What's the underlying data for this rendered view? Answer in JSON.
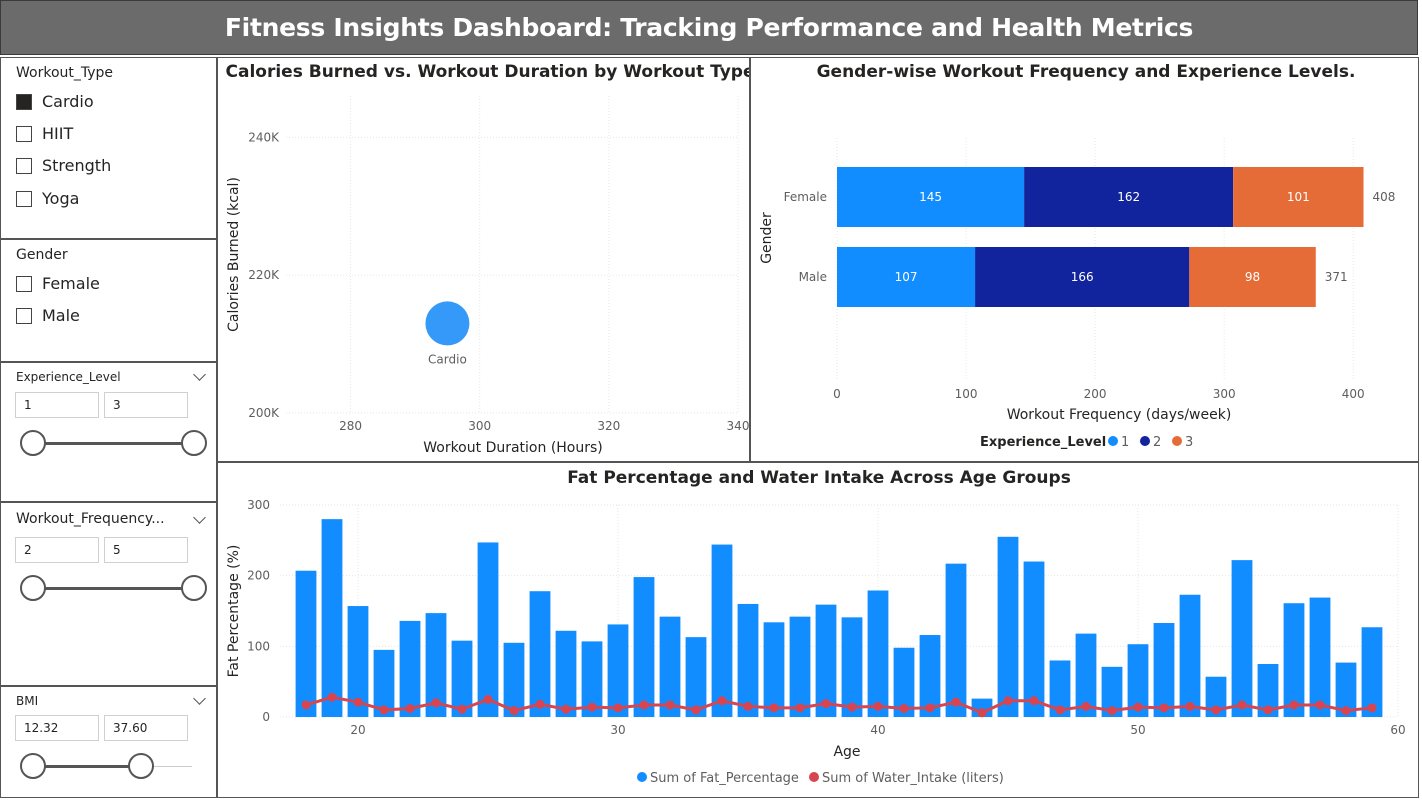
{
  "header": {
    "title": "Fitness Insights Dashboard: Tracking Performance and Health Metrics"
  },
  "slicers": {
    "workout_type": {
      "title": "Workout_Type",
      "options": [
        {
          "label": "Cardio",
          "checked": true
        },
        {
          "label": "HIIT",
          "checked": false
        },
        {
          "label": "Strength",
          "checked": false
        },
        {
          "label": "Yoga",
          "checked": false
        }
      ]
    },
    "gender": {
      "title": "Gender",
      "options": [
        {
          "label": "Female",
          "checked": false
        },
        {
          "label": "Male",
          "checked": false
        }
      ]
    },
    "experience_level": {
      "title": "Experience_Level",
      "min": "1",
      "max": "3"
    },
    "workout_frequency": {
      "title": "Workout_Frequency...",
      "min": "2",
      "max": "5"
    },
    "bmi": {
      "title": "BMI",
      "min": "12.32",
      "max": "37.60"
    }
  },
  "chart_data": [
    {
      "type": "scatter",
      "title": "Calories Burned vs. Workout Duration by Workout Type",
      "xlabel": "Workout Duration (Hours)",
      "ylabel": "Calories Burned (kcal)",
      "xlim": [
        270,
        340
      ],
      "ylim": [
        200000,
        246000
      ],
      "xticks": [
        {
          "v": 280,
          "label": "280"
        },
        {
          "v": 300,
          "label": "300"
        },
        {
          "v": 320,
          "label": "320"
        },
        {
          "v": 340,
          "label": "340"
        }
      ],
      "yticks": [
        {
          "v": 200000,
          "label": "200K"
        },
        {
          "v": 220000,
          "label": "220K"
        },
        {
          "v": 240000,
          "label": "240K"
        }
      ],
      "points": [
        {
          "label": "Cardio",
          "x": 295,
          "y": 213000
        }
      ],
      "color": "#3599F9"
    },
    {
      "type": "bar",
      "orientation": "horizontal",
      "stacked": true,
      "title": "Gender-wise Workout Frequency and Experience Levels.",
      "xlabel": "Workout Frequency (days/week)",
      "ylabel": "Gender",
      "xlim": [
        0,
        420
      ],
      "xticks": [
        0,
        100,
        200,
        300,
        400
      ],
      "categories": [
        "Female",
        "Male"
      ],
      "series": [
        {
          "name": "1",
          "values": [
            145,
            107
          ],
          "color": "#118DFF"
        },
        {
          "name": "2",
          "values": [
            162,
            166
          ],
          "color": "#12239E"
        },
        {
          "name": "3",
          "values": [
            101,
            98
          ],
          "color": "#E66C37"
        }
      ],
      "totals": [
        408,
        371
      ],
      "legend": {
        "title": "Experience_Level",
        "position": "bottom"
      }
    },
    {
      "type": "bar",
      "title": "Fat Percentage and Water Intake Across Age Groups",
      "xlabel": "Age",
      "ylabel": "Fat Percentage (%)",
      "xlim": [
        17,
        60
      ],
      "ylim": [
        0,
        300
      ],
      "xticks": [
        20,
        30,
        40,
        50,
        60
      ],
      "yticks": [
        0,
        100,
        200,
        300
      ],
      "x": [
        18,
        19,
        20,
        21,
        22,
        23,
        24,
        25,
        26,
        27,
        28,
        29,
        30,
        31,
        32,
        33,
        34,
        35,
        36,
        37,
        38,
        39,
        40,
        41,
        42,
        43,
        44,
        45,
        46,
        47,
        48,
        49,
        50,
        51,
        52,
        53,
        54,
        55,
        56,
        57,
        58,
        59
      ],
      "series": [
        {
          "name": "Sum of Fat_Percentage",
          "kind": "bar",
          "color": "#118DFF",
          "values": [
            207,
            280,
            157,
            95,
            136,
            147,
            108,
            247,
            105,
            178,
            122,
            107,
            131,
            198,
            142,
            113,
            244,
            160,
            134,
            142,
            159,
            141,
            179,
            98,
            116,
            217,
            26,
            255,
            220,
            80,
            118,
            71,
            103,
            133,
            173,
            57,
            222,
            75,
            161,
            169,
            77,
            127
          ]
        },
        {
          "name": "Sum of Water_Intake (liters)",
          "kind": "line",
          "color": "#D64550",
          "values": [
            17,
            28,
            21,
            10,
            12,
            20,
            11,
            25,
            9,
            18,
            11,
            14,
            13,
            17,
            17,
            10,
            23,
            15,
            13,
            13,
            19,
            14,
            15,
            12,
            13,
            21,
            6,
            23,
            23,
            10,
            15,
            9,
            14,
            13,
            15,
            10,
            17,
            10,
            17,
            17,
            9,
            13
          ]
        }
      ],
      "legend": {
        "position": "bottom"
      }
    }
  ]
}
